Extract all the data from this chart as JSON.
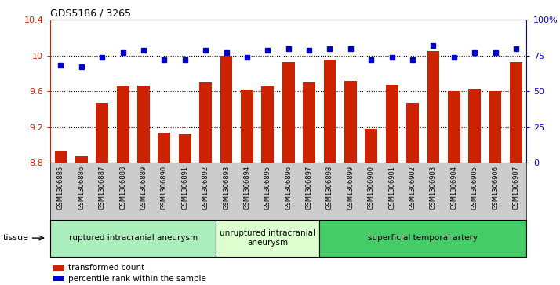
{
  "title": "GDS5186 / 3265",
  "samples": [
    "GSM1306885",
    "GSM1306886",
    "GSM1306887",
    "GSM1306888",
    "GSM1306889",
    "GSM1306890",
    "GSM1306891",
    "GSM1306892",
    "GSM1306893",
    "GSM1306894",
    "GSM1306895",
    "GSM1306896",
    "GSM1306897",
    "GSM1306898",
    "GSM1306899",
    "GSM1306900",
    "GSM1306901",
    "GSM1306902",
    "GSM1306903",
    "GSM1306904",
    "GSM1306905",
    "GSM1306906",
    "GSM1306907"
  ],
  "bar_values": [
    8.93,
    8.87,
    9.47,
    9.65,
    9.66,
    9.13,
    9.12,
    9.7,
    10.0,
    9.62,
    9.65,
    9.93,
    9.7,
    9.95,
    9.72,
    9.18,
    9.67,
    9.47,
    10.05,
    9.6,
    9.63,
    9.6,
    9.93
  ],
  "dot_percentiles": [
    68,
    67,
    74,
    77,
    79,
    72,
    72,
    79,
    77,
    74,
    79,
    80,
    79,
    80,
    80,
    72,
    74,
    72,
    82,
    74,
    77,
    77,
    80
  ],
  "bar_color": "#cc2200",
  "dot_color": "#0000cc",
  "ylim_left": [
    8.8,
    10.4
  ],
  "ylim_right": [
    0,
    100
  ],
  "yticks_left": [
    8.8,
    9.2,
    9.6,
    10.0,
    10.4
  ],
  "yticks_right": [
    0,
    25,
    50,
    75,
    100
  ],
  "ytick_labels_left": [
    "8.8",
    "9.2",
    "9.6",
    "10",
    "10.4"
  ],
  "ytick_labels_right": [
    "0",
    "25",
    "50",
    "75",
    "100%"
  ],
  "groups": [
    {
      "label": "ruptured intracranial aneurysm",
      "start": 0,
      "end": 8,
      "color": "#aaeebb"
    },
    {
      "label": "unruptured intracranial\naneurysm",
      "start": 8,
      "end": 13,
      "color": "#ddffd0"
    },
    {
      "label": "superficial temporal artery",
      "start": 13,
      "end": 23,
      "color": "#44cc66"
    }
  ],
  "legend_items": [
    {
      "label": "transformed count",
      "color": "#cc2200"
    },
    {
      "label": "percentile rank within the sample",
      "color": "#0000cc"
    }
  ],
  "tissue_label": "tissue",
  "xlabel_bg_color": "#cccccc",
  "plot_bg_color": "#ffffff"
}
